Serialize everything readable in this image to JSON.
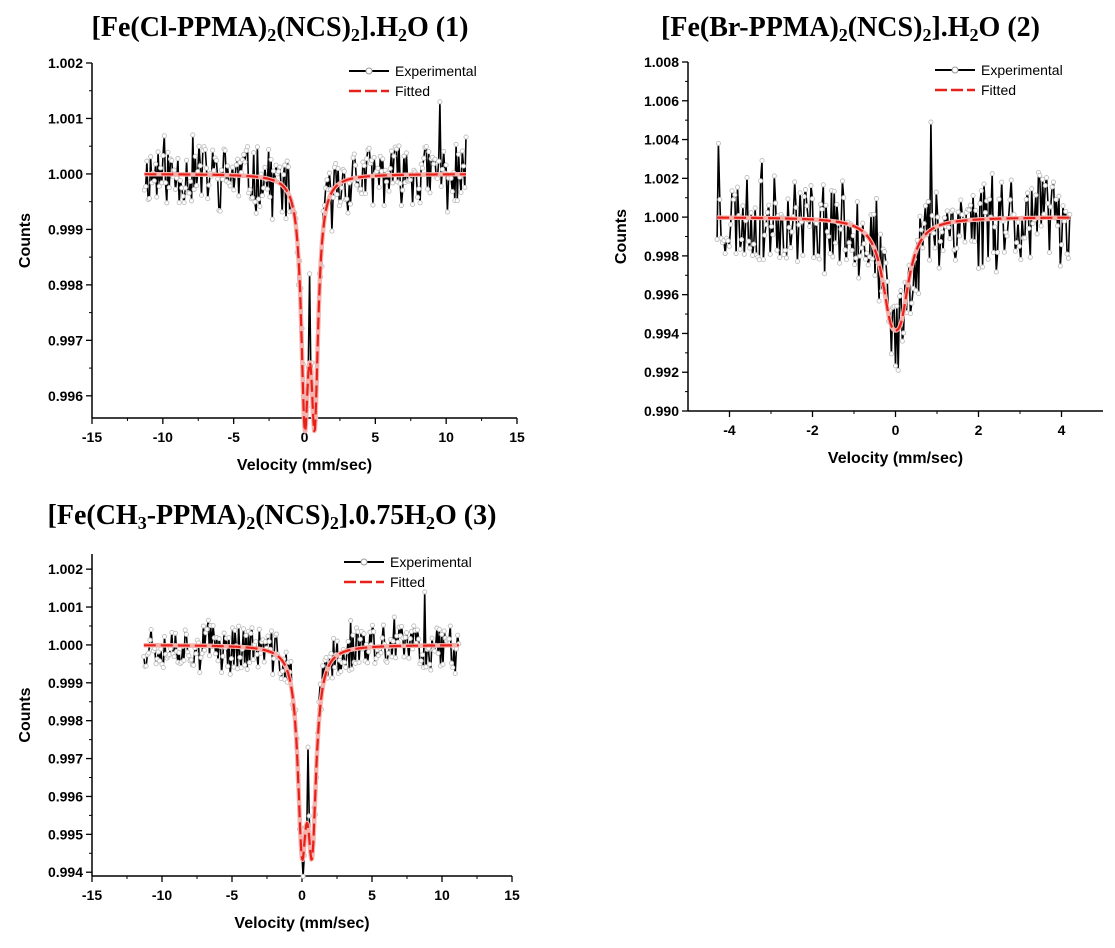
{
  "chart_data": [
    {
      "type": "line",
      "title": "[Fe(Cl-PPMA)2(NCS)2].H2O (1)",
      "title_parts": [
        "[Fe(Cl-PPMA)",
        "2",
        "(NCS)",
        "2",
        "].H",
        "2",
        "O (1)"
      ],
      "xlabel": "Velocity (mm/sec)",
      "ylabel": "Counts",
      "xlim": [
        -15,
        15
      ],
      "ylim": [
        0.9956,
        1.002
      ],
      "x_ticks": [
        -15,
        -10,
        -5,
        0,
        5,
        10,
        15
      ],
      "y_ticks": [
        0.996,
        0.997,
        0.998,
        0.999,
        1.0,
        1.001,
        1.002
      ],
      "y_decimals": 3,
      "grid": false,
      "legend_position": "top-right",
      "legend": [
        "Experimental",
        "Fitted"
      ],
      "x_range": [
        -11.3,
        11.4
      ],
      "n_points": 260,
      "noise_amp": 0.00055,
      "baseline": 1.0,
      "fit_peaks": [
        {
          "center": 0.02,
          "width": 0.3,
          "depth": 0.00401
        },
        {
          "center": 0.72,
          "width": 0.3,
          "depth": 0.00401
        }
      ],
      "series": [
        {
          "name": "Experimental",
          "color": "#000000",
          "marker_color": "#bfbfbf",
          "spikes": [
            {
              "x": 9.6,
              "y": 1.0013
            },
            {
              "x": 0.0,
              "y": 0.996
            },
            {
              "x": 0.72,
              "y": 0.996
            },
            {
              "x": 0.36,
              "y": 0.9982
            }
          ]
        },
        {
          "name": "Fitted",
          "color": "#e8201a",
          "dash": true
        }
      ],
      "seed": 11
    },
    {
      "type": "line",
      "title": "[Fe(Br-PPMA)2(NCS)2].H2O (2)",
      "title_parts": [
        "[Fe(Br-PPMA)",
        "2",
        "(NCS)",
        "2",
        "].H",
        "2",
        "O (2)"
      ],
      "xlabel": "Velocity (mm/sec)",
      "ylabel": "Counts",
      "xlim": [
        -5,
        5
      ],
      "ylim": [
        0.99,
        1.008
      ],
      "x_ticks": [
        -4,
        -2,
        0,
        2,
        4
      ],
      "y_ticks": [
        0.99,
        0.992,
        0.994,
        0.996,
        0.998,
        1.0,
        1.002,
        1.004,
        1.006,
        1.008
      ],
      "y_decimals": 3,
      "grid": false,
      "legend_position": "top-right",
      "legend": [
        "Experimental",
        "Fitted"
      ],
      "x_range": [
        -4.3,
        4.2
      ],
      "n_points": 260,
      "noise_amp": 0.0022,
      "baseline": 1.0,
      "fit_peaks": [
        {
          "center": -0.12,
          "width": 0.26,
          "depth": 0.0036
        },
        {
          "center": 0.13,
          "width": 0.26,
          "depth": 0.0036
        }
      ],
      "series": [
        {
          "name": "Experimental",
          "color": "#000000",
          "marker_color": "#bfbfbf",
          "spikes": [
            {
              "x": 0.85,
              "y": 1.0049
            },
            {
              "x": 0.06,
              "y": 0.9921
            },
            {
              "x": 0.16,
              "y": 0.9936
            },
            {
              "x": -4.28,
              "y": 1.0038
            }
          ]
        },
        {
          "name": "Fitted",
          "color": "#e8201a",
          "dash": true
        }
      ],
      "seed": 23
    },
    {
      "type": "line",
      "title": "[Fe(CH3-PPMA)2(NCS)2].0.75H2O (3)",
      "title_parts": [
        "[Fe(CH",
        "3",
        "-PPMA)",
        "2",
        "(NCS)",
        "2",
        "].0.75H",
        "2",
        "O (3)"
      ],
      "xlabel": "Velocity (mm/sec)",
      "ylabel": "Counts",
      "xlim": [
        -15,
        15
      ],
      "ylim": [
        0.9939,
        1.0024
      ],
      "x_ticks": [
        -15,
        -10,
        -5,
        0,
        5,
        10,
        15
      ],
      "y_ticks": [
        0.994,
        0.995,
        0.996,
        0.997,
        0.998,
        0.999,
        1.0,
        1.001,
        1.002
      ],
      "y_decimals": 3,
      "grid": false,
      "legend_position": "top-right",
      "legend": [
        "Experimental",
        "Fitted"
      ],
      "x_range": [
        -11.3,
        11.2
      ],
      "n_points": 260,
      "noise_amp": 0.0006,
      "baseline": 1.0,
      "fit_peaks": [
        {
          "center": 0.0,
          "width": 0.36,
          "depth": 0.0047
        },
        {
          "center": 0.72,
          "width": 0.36,
          "depth": 0.0047
        }
      ],
      "series": [
        {
          "name": "Experimental",
          "color": "#000000",
          "marker_color": "#bfbfbf",
          "spikes": [
            {
              "x": 0.0,
              "y": 0.9945
            },
            {
              "x": 8.8,
              "y": 1.0014
            },
            {
              "x": 0.4,
              "y": 0.9973
            }
          ]
        },
        {
          "name": "Fitted",
          "color": "#e8201a",
          "dash": true
        }
      ],
      "seed": 37
    }
  ]
}
